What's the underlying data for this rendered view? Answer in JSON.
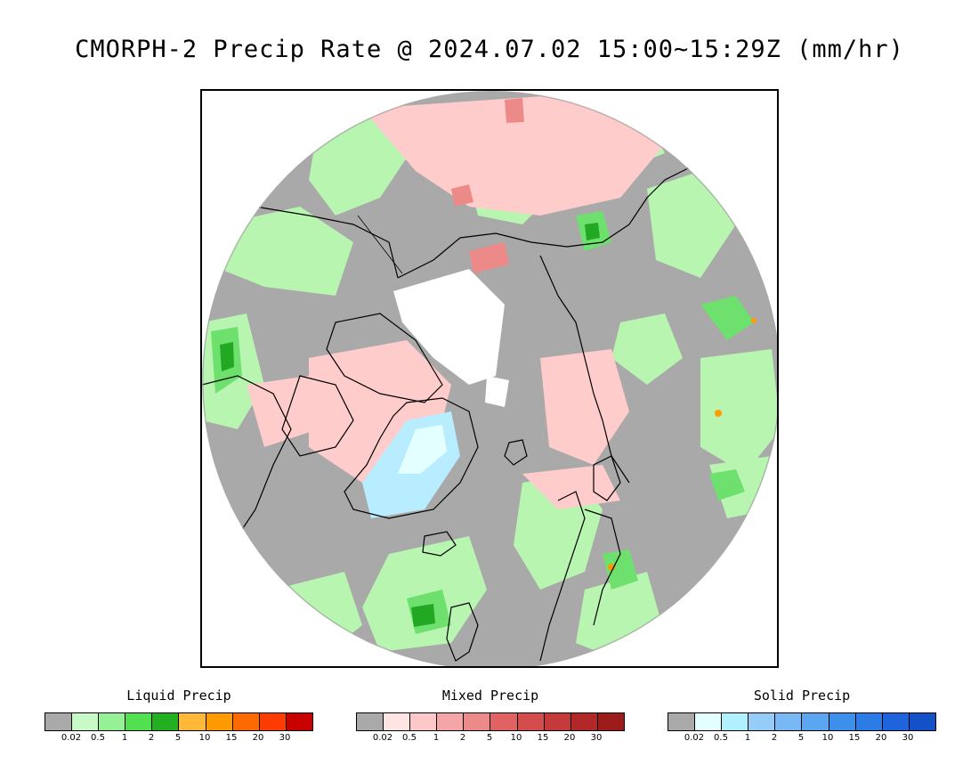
{
  "title": "CMORPH-2 Precip Rate @ 2024.07.02 15:00~15:29Z (mm/hr)",
  "colors": {
    "no_precip": "#a9a9a9",
    "land_outline": "#000000",
    "ice_white": "#ffffff"
  },
  "legends": [
    {
      "key": "liquid",
      "title": "Liquid Precip",
      "colors": [
        "#a9a9a9",
        "#c8fac8",
        "#96f096",
        "#50e050",
        "#20b020",
        "#ffb838",
        "#ff9a00",
        "#ff6a00",
        "#ff3c00",
        "#c80000"
      ],
      "ticks": [
        "0.02",
        "0.5",
        "1",
        "2",
        "5",
        "10",
        "15",
        "20",
        "30"
      ]
    },
    {
      "key": "mixed",
      "title": "Mixed Precip",
      "colors": [
        "#a9a9a9",
        "#ffe4e4",
        "#ffc8c8",
        "#f4a6a6",
        "#ec8a8a",
        "#e06262",
        "#d44c4c",
        "#c43a3a",
        "#b02828",
        "#9c1c1c"
      ],
      "ticks": [
        "0.02",
        "0.5",
        "1",
        "2",
        "5",
        "10",
        "15",
        "20",
        "30"
      ]
    },
    {
      "key": "solid",
      "title": "Solid Precip",
      "colors": [
        "#a9a9a9",
        "#e4ffff",
        "#b0f0ff",
        "#96ccf8",
        "#78b8f4",
        "#5aa6f0",
        "#3c90ec",
        "#2c7ce8",
        "#1e64dc",
        "#1450c8"
      ],
      "ticks": [
        "0.02",
        "0.5",
        "1",
        "2",
        "5",
        "10",
        "15",
        "20",
        "30"
      ]
    }
  ]
}
